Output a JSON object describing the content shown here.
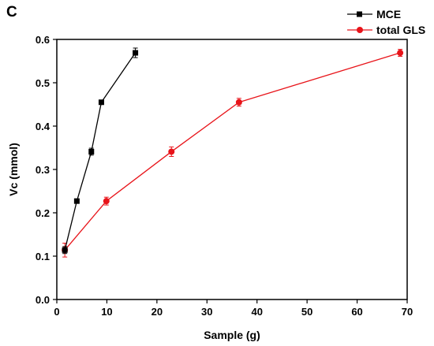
{
  "panel_label": "C",
  "chart_data": {
    "type": "line",
    "xlabel": "Sample (g)",
    "ylabel": "Vc (mmol)",
    "xlim": [
      0,
      70
    ],
    "ylim": [
      0.0,
      0.6
    ],
    "xticks": [
      "0",
      "10",
      "20",
      "30",
      "40",
      "50",
      "60",
      "70"
    ],
    "yticks": [
      "0.0",
      "0.1",
      "0.2",
      "0.3",
      "0.4",
      "0.5",
      "0.6"
    ],
    "legend_position": "top-right",
    "series": [
      {
        "name": "MCE",
        "color": "#000000",
        "marker": "square",
        "x": [
          1.6,
          4.0,
          6.9,
          8.9,
          15.7
        ],
        "y": [
          0.114,
          0.227,
          0.341,
          0.455,
          0.569
        ],
        "yerr": [
          0.008,
          0.005,
          0.008,
          0.005,
          0.011
        ]
      },
      {
        "name": "total GLS",
        "color": "#e8141a",
        "marker": "circle",
        "x": [
          1.6,
          9.9,
          22.9,
          36.4,
          68.6
        ],
        "y": [
          0.114,
          0.227,
          0.341,
          0.455,
          0.569
        ],
        "yerr": [
          0.016,
          0.009,
          0.011,
          0.009,
          0.008
        ]
      }
    ]
  }
}
